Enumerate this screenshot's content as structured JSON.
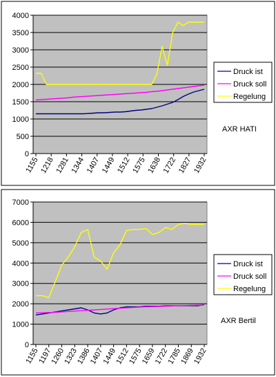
{
  "colors": {
    "plot_bg": "#c0c0c0",
    "druck_ist": "#000080",
    "druck_soll": "#ff00ff",
    "regelung": "#ffff00",
    "frame": "#000000"
  },
  "chart_data": [
    {
      "type": "line",
      "annotation": "AXR HATI",
      "ylim": [
        0,
        4000
      ],
      "yticks": [
        0,
        500,
        1000,
        1500,
        2000,
        2500,
        3000,
        3500,
        4000
      ],
      "x_tick_labels": [
        "1155",
        "1218",
        "1281",
        "1344",
        "1407",
        "1449",
        "1512",
        "1575",
        "1638",
        "1722",
        "1827",
        "1932"
      ],
      "grid": "horizontal",
      "legend_position": "right",
      "series": [
        {
          "name": "Druck ist",
          "values": [
            1150,
            1150,
            1150,
            1150,
            1150,
            1150,
            1150,
            1150,
            1150,
            1150,
            1160,
            1170,
            1180,
            1180,
            1190,
            1200,
            1200,
            1210,
            1230,
            1250,
            1260,
            1280,
            1300,
            1340,
            1380,
            1430,
            1480,
            1560,
            1650,
            1720,
            1780,
            1820,
            1860
          ]
        },
        {
          "name": "Druck soll",
          "values": [
            1550,
            1560,
            1570,
            1580,
            1590,
            1600,
            1610,
            1630,
            1640,
            1650,
            1660,
            1670,
            1680,
            1690,
            1700,
            1710,
            1720,
            1730,
            1740,
            1750,
            1760,
            1770,
            1790,
            1800,
            1820,
            1840,
            1860,
            1880,
            1900,
            1920,
            1940,
            1960,
            1980
          ]
        },
        {
          "name": "Regelung",
          "values": [
            2320,
            2320,
            2000,
            2000,
            2000,
            2000,
            2000,
            2000,
            2000,
            2000,
            2000,
            2000,
            2000,
            2000,
            2000,
            2000,
            2000,
            2000,
            2000,
            2000,
            2000,
            2000,
            2000,
            2300,
            3100,
            2550,
            3500,
            3800,
            3700,
            3800,
            3800,
            3800,
            3800
          ]
        }
      ]
    },
    {
      "type": "line",
      "annotation": "AXR Bertil",
      "ylim": [
        0,
        7000
      ],
      "yticks": [
        0,
        1000,
        2000,
        3000,
        4000,
        5000,
        6000,
        7000
      ],
      "x_tick_labels": [
        "1155",
        "1197",
        "1260",
        "1323",
        "1386",
        "1407",
        "1449",
        "1512",
        "1575",
        "1659",
        "1722",
        "1785",
        "1869",
        "1932"
      ],
      "grid": "horizontal",
      "legend_position": "right",
      "series": [
        {
          "name": "Druck ist",
          "values": [
            1450,
            1500,
            1550,
            1600,
            1650,
            1700,
            1750,
            1800,
            1700,
            1550,
            1500,
            1550,
            1700,
            1800,
            1850,
            1850,
            1850,
            1880,
            1880,
            1880,
            1900,
            1900,
            1900,
            1900,
            1900,
            1900,
            1950
          ]
        },
        {
          "name": "Druck soll",
          "values": [
            1550,
            1560,
            1570,
            1580,
            1600,
            1620,
            1640,
            1660,
            1680,
            1700,
            1720,
            1740,
            1760,
            1780,
            1800,
            1820,
            1840,
            1850,
            1860,
            1870,
            1880,
            1890,
            1900,
            1910,
            1920,
            1930,
            1940
          ]
        },
        {
          "name": "Regelung",
          "values": [
            2400,
            2400,
            2300,
            3100,
            3900,
            4300,
            4800,
            5500,
            5650,
            4300,
            4100,
            3700,
            4500,
            4900,
            5600,
            5650,
            5650,
            5700,
            5400,
            5500,
            5750,
            5650,
            5900,
            5950,
            5900,
            5900,
            5900
          ]
        }
      ]
    }
  ]
}
